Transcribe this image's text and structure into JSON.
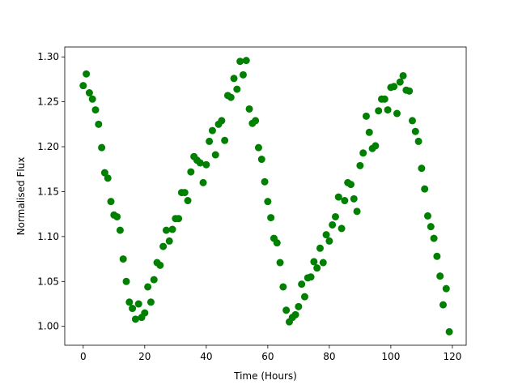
{
  "chart_data": {
    "type": "scatter",
    "xlabel": "Time (Hours)",
    "ylabel": "Normalised Flux",
    "color": "#008000",
    "xlim": [
      -6,
      124.5
    ],
    "ylim": [
      0.979,
      1.311
    ],
    "xticks": [
      0,
      20,
      40,
      60,
      80,
      100,
      120
    ],
    "yticks": [
      {
        "value": 1.0,
        "label": "1.00"
      },
      1.05,
      {
        "value": 1.1,
        "label": "1.10"
      },
      1.15,
      {
        "value": 1.2,
        "label": "1.20"
      },
      1.25,
      {
        "value": 1.3,
        "label": "1.30"
      }
    ],
    "x": [
      0,
      1,
      2,
      3,
      4,
      5,
      6,
      7,
      8,
      9,
      10,
      11,
      12,
      13,
      14,
      15,
      16,
      17,
      18,
      19,
      20,
      21,
      22,
      23,
      24,
      25,
      26,
      27,
      28,
      29,
      30,
      31,
      32,
      33,
      34,
      35,
      36,
      37,
      38,
      39,
      40,
      41,
      42,
      43,
      44,
      45,
      46,
      47,
      48,
      49,
      50,
      51,
      52,
      53,
      54,
      55,
      56,
      57,
      58,
      59,
      60,
      61,
      62,
      63,
      64,
      65,
      66,
      67,
      68,
      69,
      70,
      71,
      72,
      73,
      74,
      75,
      76,
      77,
      78,
      79,
      80,
      81,
      82,
      83,
      84,
      85,
      86,
      87,
      88,
      89,
      90,
      91,
      92,
      93,
      94,
      95,
      96,
      97,
      98,
      99,
      100,
      101,
      102,
      103,
      104,
      105,
      106,
      107,
      108,
      109,
      110,
      111,
      112,
      113,
      114,
      115,
      116,
      117,
      118,
      119
    ],
    "values": [
      1.268,
      1.281,
      1.26,
      1.253,
      1.241,
      1.225,
      1.199,
      1.171,
      1.165,
      1.139,
      1.124,
      1.122,
      1.107,
      1.075,
      1.05,
      1.027,
      1.02,
      1.008,
      1.025,
      1.01,
      1.015,
      1.044,
      1.027,
      1.052,
      1.071,
      1.068,
      1.089,
      1.107,
      1.095,
      1.108,
      1.12,
      1.12,
      1.149,
      1.149,
      1.14,
      1.172,
      1.189,
      1.185,
      1.182,
      1.16,
      1.18,
      1.206,
      1.218,
      1.191,
      1.225,
      1.229,
      1.207,
      1.257,
      1.255,
      1.276,
      1.264,
      1.295,
      1.28,
      1.296,
      1.242,
      1.226,
      1.229,
      1.199,
      1.186,
      1.161,
      1.139,
      1.121,
      1.098,
      1.093,
      1.071,
      1.044,
      1.018,
      1.005,
      1.01,
      1.013,
      1.022,
      1.047,
      1.033,
      1.054,
      1.055,
      1.072,
      1.065,
      1.087,
      1.071,
      1.102,
      1.095,
      1.113,
      1.122,
      1.144,
      1.109,
      1.14,
      1.16,
      1.158,
      1.142,
      1.128,
      1.179,
      1.193,
      1.234,
      1.216,
      1.198,
      1.201,
      1.24,
      1.253,
      1.253,
      1.241,
      1.266,
      1.267,
      1.237,
      1.272,
      1.279,
      1.263,
      1.262,
      1.229,
      1.217,
      1.206,
      1.176,
      1.153,
      1.123,
      1.111,
      1.098,
      1.078,
      1.056,
      1.024,
      1.042,
      0.994
    ]
  }
}
